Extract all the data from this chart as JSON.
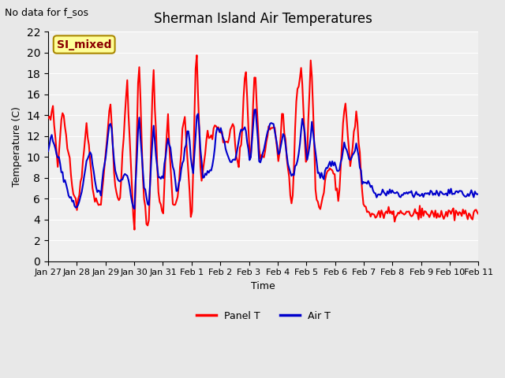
{
  "title": "Sherman Island Air Temperatures",
  "subtitle": "No data for f_sos",
  "xlabel": "Time",
  "ylabel": "Temperature (C)",
  "ylim": [
    0,
    22
  ],
  "yticks": [
    0,
    2,
    4,
    6,
    8,
    10,
    12,
    14,
    16,
    18,
    20,
    22
  ],
  "xtick_labels": [
    "Jan 27",
    "Jan 28",
    "Jan 29",
    "Jan 30",
    "Jan 31",
    "Feb 1",
    "Feb 2",
    "Feb 3",
    "Feb 4",
    "Feb 5",
    "Feb 6",
    "Feb 7",
    "Feb 8",
    "Feb 9",
    "Feb 10",
    "Feb 11"
  ],
  "bg_color": "#e8e8e8",
  "plot_bg_color": "#f0f0f0",
  "panel_t_color": "#ff0000",
  "air_t_color": "#0000cc",
  "legend_label_panel": "Panel T",
  "legend_label_air": "Air T",
  "annotation_text": "SI_mixed",
  "annotation_bg": "#ffff99",
  "annotation_border": "#aa8800",
  "n_days": 15
}
